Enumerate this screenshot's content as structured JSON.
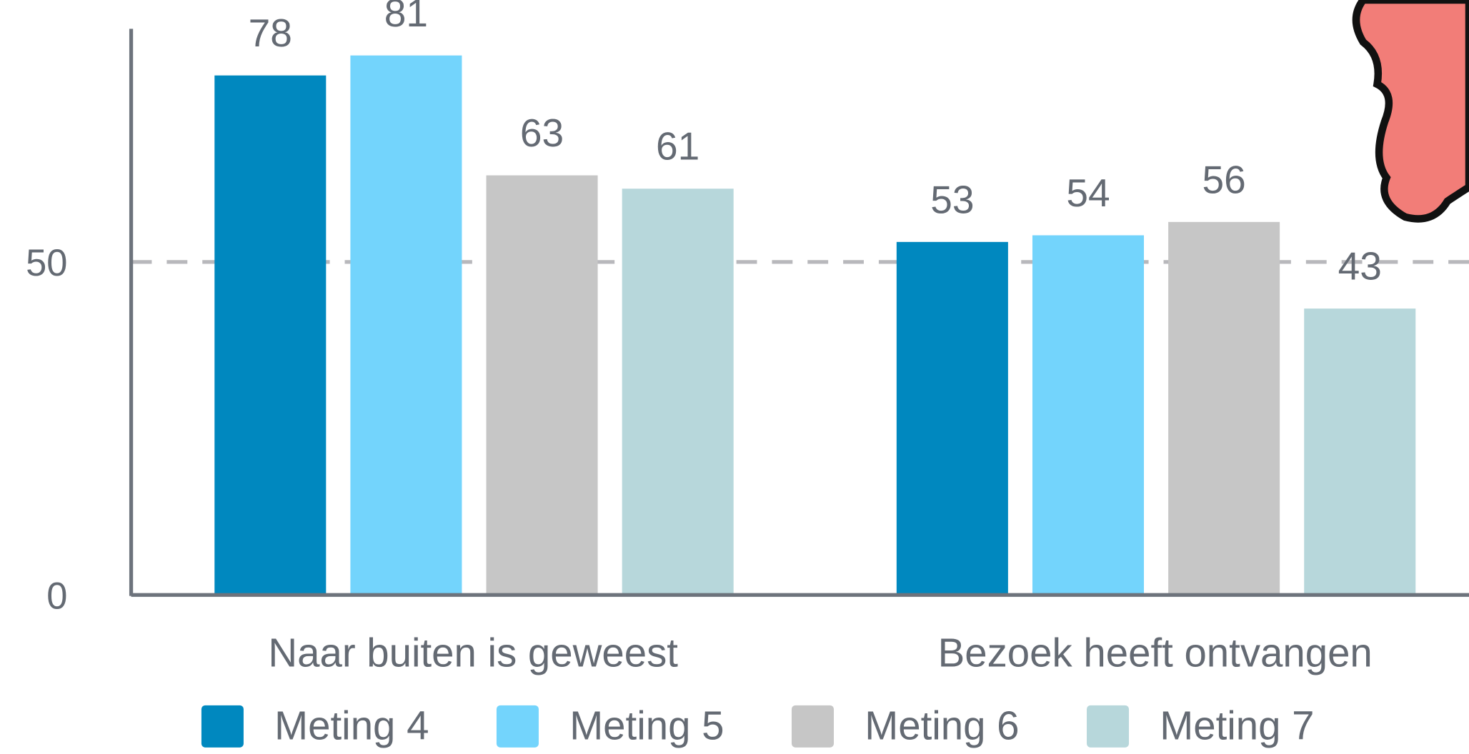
{
  "chart_data": {
    "type": "bar",
    "categories": [
      "Naar buiten is geweest",
      "Bezoek heeft ontvangen"
    ],
    "series": [
      {
        "name": "Meting 4",
        "color": "#0088bf",
        "values": [
          78,
          53
        ]
      },
      {
        "name": "Meting 5",
        "color": "#73d4fc",
        "values": [
          81,
          54
        ]
      },
      {
        "name": "Meting 6",
        "color": "#c6c6c6",
        "values": [
          63,
          56
        ]
      },
      {
        "name": "Meting 7",
        "color": "#b7d7db",
        "values": [
          61,
          43
        ]
      }
    ],
    "ylim": [
      0,
      85
    ],
    "yticks": [
      0,
      50
    ],
    "grid": true,
    "legend": "bottom"
  }
}
